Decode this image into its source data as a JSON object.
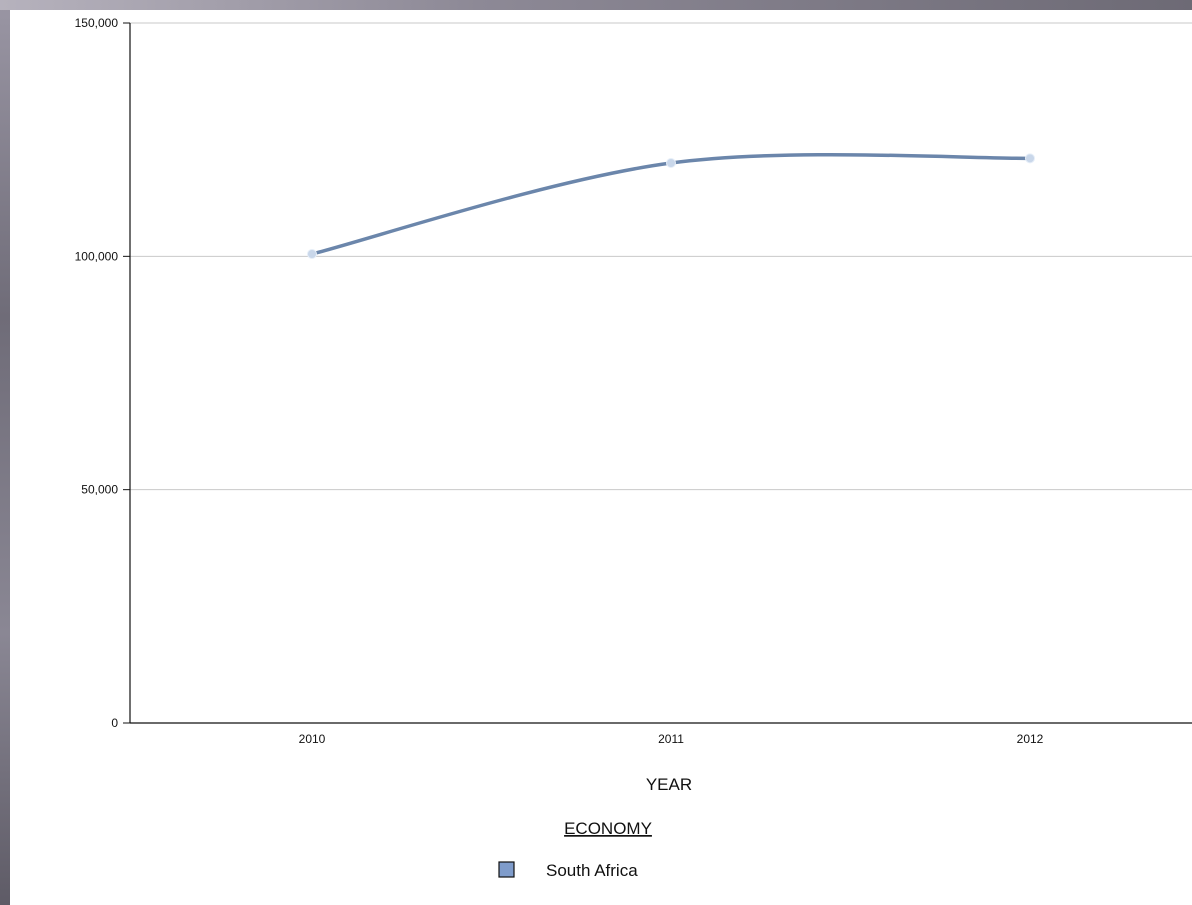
{
  "chart_data": {
    "type": "line",
    "title": "",
    "xlabel": "YEAR",
    "ylabel": "",
    "categories": [
      "2010",
      "2011",
      "2012"
    ],
    "ylim": [
      0,
      150000
    ],
    "yticks": [
      0,
      50000,
      100000,
      150000
    ],
    "ytick_labels": [
      "0",
      "50,000",
      "100,000",
      "150,000"
    ],
    "grid": true,
    "series": [
      {
        "name": "South Africa",
        "values": [
          100500,
          120000,
          121000
        ],
        "color": "#6b86ab",
        "marker_color": "#c9d7ea"
      }
    ],
    "legend": {
      "title": "ECONOMY",
      "placement": "bottom-center",
      "items": [
        {
          "label": "South Africa",
          "swatch_color": "#7f9ccb"
        }
      ]
    }
  }
}
